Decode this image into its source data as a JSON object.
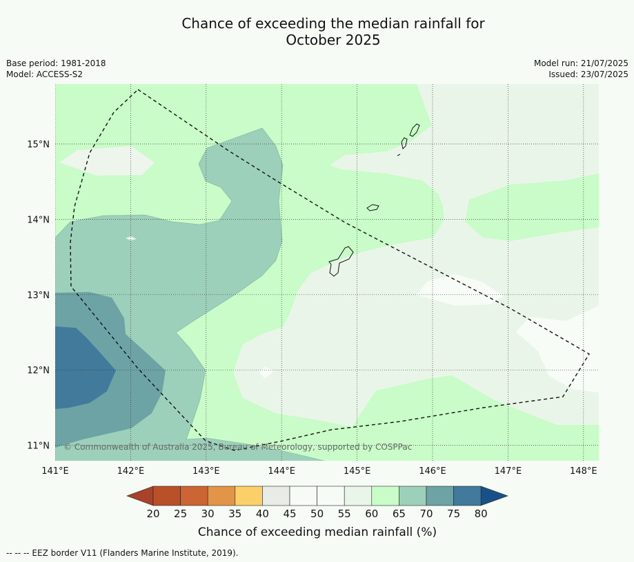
{
  "title_line1": "Chance of exceeding the median rainfall for",
  "title_line2": "October 2025",
  "meta": {
    "base_period": "Base period: 1981-2018",
    "model": "Model: ACCESS-S2",
    "model_run": "Model run: 21/07/2025",
    "issued": "Issued: 23/07/2025"
  },
  "copyright": "© Commonwealth of Australia 2025, Bureau of Meteorology, supported by COSPPac",
  "lon_labels": [
    "141°E",
    "142°E",
    "143°E",
    "144°E",
    "145°E",
    "146°E",
    "147°E",
    "148°E"
  ],
  "lat_labels": [
    "15°N",
    "14°N",
    "13°N",
    "12°N",
    "11°N"
  ],
  "colorbar": {
    "label": "Chance of exceeding median rainfall (%)",
    "ticks": [
      "20",
      "25",
      "30",
      "35",
      "40",
      "45",
      "50",
      "55",
      "60",
      "65",
      "70",
      "75",
      "80"
    ],
    "colors": [
      "#a8432a",
      "#b85128",
      "#cc6433",
      "#e39547",
      "#fcd068",
      "#e8ebe6",
      "#f6fbf6",
      "#f6fbf6",
      "#e9f5e8",
      "#c9fcc8",
      "#9dd0ba",
      "#6da3a5",
      "#417a9b",
      "#1a5089"
    ]
  },
  "footer": "--  --  -- EEZ border V11 (Flanders Marine Institute, 2019)."
}
